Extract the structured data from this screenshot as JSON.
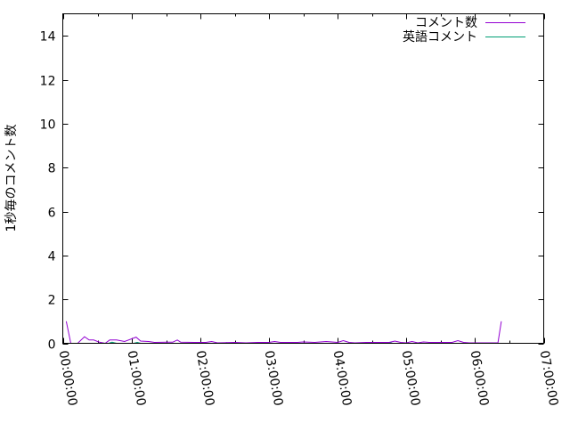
{
  "chart_data": {
    "type": "line",
    "title": "",
    "xlabel": "",
    "ylabel": "1秒毎のコメント数",
    "xlim": [
      "00:00:00",
      "07:00:00"
    ],
    "ylim": [
      0,
      15
    ],
    "xticks": [
      "00:00:00",
      "01:00:00",
      "02:00:00",
      "03:00:00",
      "04:00:00",
      "05:00:00",
      "06:00:00",
      "07:00:00"
    ],
    "yticks": [
      "0",
      "2",
      "4",
      "6",
      "8",
      "10",
      "12",
      "14"
    ],
    "grid": false,
    "legend": "top-right",
    "series": [
      {
        "name": "コメント数",
        "color": "#9400d3",
        "points": [
          [
            "00:03:00",
            1.0
          ],
          [
            "00:07:00",
            0
          ],
          [
            "00:13:00",
            0
          ],
          [
            "00:19:00",
            0.3
          ],
          [
            "00:23:00",
            0.15
          ],
          [
            "00:27:00",
            0.15
          ],
          [
            "00:32:00",
            0.05
          ],
          [
            "00:37:00",
            0
          ],
          [
            "00:41:00",
            0.15
          ],
          [
            "00:47:00",
            0.15
          ],
          [
            "00:54:00",
            0.08
          ],
          [
            "01:04:00",
            0.28
          ],
          [
            "01:08:00",
            0.1
          ],
          [
            "01:15:00",
            0.08
          ],
          [
            "01:20:00",
            0.04
          ],
          [
            "01:31:00",
            0.05
          ],
          [
            "01:36:00",
            0.05
          ],
          [
            "01:40:00",
            0.15
          ],
          [
            "01:43:00",
            0.05
          ],
          [
            "01:55:00",
            0.04
          ],
          [
            "02:05:00",
            0.04
          ],
          [
            "02:10:00",
            0.08
          ],
          [
            "02:15:00",
            0.02
          ],
          [
            "02:30:00",
            0.04
          ],
          [
            "02:40:00",
            0.02
          ],
          [
            "02:50:00",
            0.04
          ],
          [
            "03:00:00",
            0.04
          ],
          [
            "03:05:00",
            0.08
          ],
          [
            "03:10:00",
            0.04
          ],
          [
            "03:25:00",
            0.04
          ],
          [
            "03:30:00",
            0.06
          ],
          [
            "03:40:00",
            0.04
          ],
          [
            "03:50:00",
            0.08
          ],
          [
            "04:00:00",
            0.04
          ],
          [
            "04:05:00",
            0.12
          ],
          [
            "04:10:00",
            0.04
          ],
          [
            "04:15:00",
            0.02
          ],
          [
            "04:25:00",
            0.04
          ],
          [
            "04:35:00",
            0.04
          ],
          [
            "04:45:00",
            0.04
          ],
          [
            "04:50:00",
            0.1
          ],
          [
            "04:55:00",
            0.04
          ],
          [
            "05:00:00",
            0.02
          ],
          [
            "05:05:00",
            0.08
          ],
          [
            "05:10:00",
            0.02
          ],
          [
            "05:15:00",
            0.06
          ],
          [
            "05:20:00",
            0.04
          ],
          [
            "05:30:00",
            0.04
          ],
          [
            "05:40:00",
            0.04
          ],
          [
            "05:45:00",
            0.12
          ],
          [
            "05:50:00",
            0.04
          ],
          [
            "05:55:00",
            0.02
          ],
          [
            "06:05:00",
            0.02
          ],
          [
            "06:15:00",
            0.02
          ],
          [
            "06:20:00",
            0.02
          ],
          [
            "06:23:00",
            1.0
          ]
        ]
      },
      {
        "name": "英語コメント",
        "color": "#009e73",
        "points": [
          [
            "00:03:00",
            0
          ],
          [
            "00:40:00",
            0
          ],
          [
            "00:43:00",
            0.05
          ],
          [
            "00:47:00",
            0
          ],
          [
            "01:02:00",
            0
          ],
          [
            "01:05:00",
            0.04
          ],
          [
            "01:08:00",
            0
          ],
          [
            "02:20:00",
            0
          ],
          [
            "02:23:00",
            0.03
          ],
          [
            "02:26:00",
            0
          ],
          [
            "04:42:00",
            0
          ],
          [
            "04:45:00",
            0.04
          ],
          [
            "04:48:00",
            0
          ],
          [
            "06:23:00",
            0
          ]
        ]
      }
    ]
  }
}
